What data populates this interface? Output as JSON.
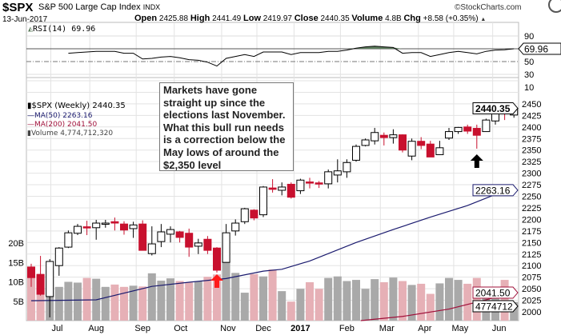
{
  "header": {
    "symbol": "$SPX",
    "name": "S&P 500 Large Cap Index",
    "exchange": "INDX",
    "copyright": "©StockCharts.com",
    "date": "13-Jun-2017",
    "open_label": "Open",
    "open": "2425.88",
    "high_label": "High",
    "high": "2441.49",
    "low_label": "Low",
    "low": "2419.97",
    "close_label": "Close",
    "close": "2440.35",
    "volume_label": "Volume",
    "volume": "4.8B",
    "chg_label": "Chg",
    "chg": "+8.58 (+0.35%)",
    "chg_arrow": "▲"
  },
  "rsi_panel": {
    "label": "RSI(14) 69.96",
    "current_tag": "69.96"
  },
  "legend": {
    "price": "$SPX (Weekly) 2440.35",
    "ma50": "MA(50) 2263.16",
    "ma200": "MA(200) 2041.50",
    "volume": "Volume 4,774,712,320"
  },
  "annotation": "Markets have gone straight up since the elections last November. What this bull run needs is a correction below the May lows of around the $2,350 level",
  "tags": {
    "price": "2440.35",
    "ma50": "2263.16",
    "ma200": "2041.50",
    "volume": "4774712"
  },
  "colors": {
    "up": "#ffffff",
    "down": "#c8102e",
    "vol_up": "#a9a9a9",
    "vol_down": "#e6b0b6",
    "ma50": "#1a1a6e",
    "ma200": "#a0103a",
    "rsi_fill": "#5f7f5f",
    "arrow_red": "#ff1a1a",
    "arrow_black": "#000000"
  },
  "chart_data": {
    "type": "candlestick",
    "title": "$SPX S&P 500 Large Cap Index INDX (Weekly)",
    "x_labels": [
      {
        "label": "Jul",
        "week": 2.8
      },
      {
        "label": "Aug",
        "week": 7
      },
      {
        "label": "Sep",
        "week": 12
      },
      {
        "label": "Oct",
        "week": 16.1
      },
      {
        "label": "Nov",
        "week": 21.2
      },
      {
        "label": "Dec",
        "week": 25
      },
      {
        "label": "2017",
        "week": 29,
        "bold": true
      },
      {
        "label": "Feb",
        "week": 34
      },
      {
        "label": "Mar",
        "week": 38.3
      },
      {
        "label": "Apr",
        "week": 42.4
      },
      {
        "label": "May",
        "week": 46.2
      },
      {
        "label": "Jun",
        "week": 50.4
      }
    ],
    "price_ticks": [
      2000,
      2025,
      2050,
      2075,
      2100,
      2125,
      2150,
      2175,
      2200,
      2225,
      2250,
      2275,
      2300,
      2325,
      2350,
      2375,
      2400,
      2425,
      2450
    ],
    "price_range": [
      2000,
      2450
    ],
    "rsi_ticks": [
      90,
      50,
      30,
      10
    ],
    "volume_ticks": [
      "5B",
      "10B",
      "15B",
      "20B"
    ],
    "ohlc": [
      [
        2097,
        2104,
        2054,
        2074
      ],
      [
        2081,
        2121,
        2035,
        2038
      ],
      [
        2033,
        2114,
        1988,
        2109
      ],
      [
        2100,
        2140,
        2078,
        2138
      ],
      [
        2140,
        2176,
        2138,
        2171
      ],
      [
        2170,
        2190,
        2166,
        2185
      ],
      [
        2184,
        2197,
        2166,
        2182
      ],
      [
        2182,
        2199,
        2156,
        2192
      ],
      [
        2190,
        2199,
        2182,
        2192
      ],
      [
        2195,
        2204,
        2176,
        2192
      ],
      [
        2190,
        2196,
        2167,
        2177
      ],
      [
        2180,
        2195,
        2160,
        2188
      ],
      [
        2190,
        2198,
        2133,
        2133
      ],
      [
        2126,
        2185,
        2122,
        2147
      ],
      [
        2152,
        2190,
        2140,
        2173
      ],
      [
        2168,
        2185,
        2150,
        2178
      ],
      [
        2173,
        2175,
        2150,
        2161
      ],
      [
        2170,
        2180,
        2119,
        2140
      ],
      [
        2142,
        2158,
        2125,
        2149
      ],
      [
        2157,
        2164,
        2125,
        2133
      ],
      [
        2138,
        2140,
        2085,
        2090
      ],
      [
        2107,
        2190,
        2107,
        2171
      ],
      [
        2175,
        2200,
        2165,
        2192
      ],
      [
        2195,
        2225,
        2190,
        2223
      ],
      [
        2220,
        2222,
        2198,
        2203
      ],
      [
        2210,
        2272,
        2205,
        2270
      ],
      [
        2268,
        2287,
        2258,
        2265
      ],
      [
        2263,
        2280,
        2252,
        2270
      ],
      [
        2276,
        2280,
        2245,
        2248
      ],
      [
        2262,
        2288,
        2255,
        2285
      ],
      [
        2281,
        2290,
        2267,
        2280
      ],
      [
        2279,
        2283,
        2268,
        2278
      ],
      [
        2277,
        2308,
        2267,
        2303
      ],
      [
        2296,
        2330,
        2280,
        2305
      ],
      [
        2303,
        2330,
        2290,
        2323
      ],
      [
        2328,
        2362,
        2325,
        2358
      ],
      [
        2360,
        2375,
        2358,
        2372
      ],
      [
        2370,
        2398,
        2362,
        2388
      ],
      [
        2382,
        2388,
        2360,
        2377
      ],
      [
        2377,
        2395,
        2364,
        2383
      ],
      [
        2383,
        2384,
        2345,
        2350
      ],
      [
        2337,
        2375,
        2328,
        2369
      ],
      [
        2369,
        2378,
        2352,
        2360
      ],
      [
        2363,
        2370,
        2335,
        2335
      ],
      [
        2340,
        2370,
        2340,
        2355
      ],
      [
        2376,
        2398,
        2372,
        2390
      ],
      [
        2390,
        2400,
        2385,
        2399
      ],
      [
        2400,
        2405,
        2385,
        2391
      ],
      [
        2397,
        2405,
        2353,
        2382
      ],
      [
        2390,
        2418,
        2390,
        2415
      ],
      [
        2413,
        2440,
        2405,
        2438
      ],
      [
        2432,
        2450,
        2415,
        2430
      ],
      [
        2425.88,
        2441.49,
        2419.97,
        2440.35
      ]
    ],
    "candle_color": [
      "d",
      "d",
      "u",
      "u",
      "u",
      "u",
      "d",
      "u",
      "u",
      "d",
      "d",
      "u",
      "d",
      "u",
      "u",
      "u",
      "d",
      "d",
      "u",
      "d",
      "d",
      "u",
      "u",
      "u",
      "d",
      "u",
      "d",
      "u",
      "d",
      "u",
      "d",
      "d",
      "u",
      "u",
      "u",
      "u",
      "u",
      "u",
      "d",
      "u",
      "d",
      "u",
      "d",
      "d",
      "u",
      "u",
      "u",
      "d",
      "d",
      "u",
      "u",
      "d",
      "u"
    ],
    "volume_b": [
      13,
      12,
      13,
      8.7,
      10,
      9.8,
      11,
      10.8,
      8.7,
      9.3,
      8.7,
      9,
      8.8,
      12.2,
      10.3,
      10.9,
      10.2,
      9.8,
      10.1,
      11.3,
      11.9,
      15.4,
      12.3,
      7.2,
      12,
      11.4,
      13.2,
      7.6,
      4.9,
      8.2,
      9.9,
      8.2,
      11,
      11.4,
      10.2,
      10.5,
      8.2,
      10.7,
      9.9,
      11.1,
      10.2,
      9.2,
      9.5,
      6.9,
      9.6,
      11,
      10.5,
      9.5,
      11,
      8.4,
      8.5,
      10.5,
      4.8
    ],
    "ma50": [
      [
        0,
        2024
      ],
      [
        7,
        2026
      ],
      [
        13,
        2055
      ],
      [
        17,
        2064
      ],
      [
        21,
        2072
      ],
      [
        25,
        2088
      ],
      [
        27,
        2092
      ],
      [
        30,
        2110
      ],
      [
        35,
        2150
      ],
      [
        39,
        2178
      ],
      [
        43,
        2205
      ],
      [
        47,
        2230
      ],
      [
        50,
        2254
      ],
      [
        52,
        2263.16
      ]
    ],
    "ma200": [
      [
        35.5,
        1977
      ],
      [
        40,
        1990
      ],
      [
        45,
        2006
      ],
      [
        49,
        2026
      ],
      [
        52,
        2041.5
      ]
    ],
    "rsi": [
      [
        4,
        63
      ],
      [
        5,
        64
      ],
      [
        6,
        65
      ],
      [
        7,
        66
      ],
      [
        8,
        66
      ],
      [
        9,
        66
      ],
      [
        10,
        63
      ],
      [
        11,
        63
      ],
      [
        12,
        54
      ],
      [
        13,
        55
      ],
      [
        14,
        57
      ],
      [
        15,
        58
      ],
      [
        16,
        56
      ],
      [
        17,
        53
      ],
      [
        18,
        52
      ],
      [
        19,
        49
      ],
      [
        20,
        43
      ],
      [
        21,
        55
      ],
      [
        22,
        58
      ],
      [
        23,
        61
      ],
      [
        24,
        58
      ],
      [
        25,
        65
      ],
      [
        26,
        65
      ],
      [
        27,
        65
      ],
      [
        28,
        61
      ],
      [
        29,
        64
      ],
      [
        30,
        64
      ],
      [
        31,
        64
      ],
      [
        32,
        66
      ],
      [
        33,
        66
      ],
      [
        34,
        68
      ],
      [
        35,
        71
      ],
      [
        36,
        73
      ],
      [
        37,
        74
      ],
      [
        38,
        73
      ],
      [
        39,
        72
      ],
      [
        40,
        63
      ],
      [
        41,
        64
      ],
      [
        42,
        64
      ],
      [
        43,
        58
      ],
      [
        44,
        61
      ],
      [
        45,
        64
      ],
      [
        46,
        66
      ],
      [
        47,
        64
      ],
      [
        48,
        62
      ],
      [
        49,
        66
      ],
      [
        50,
        68
      ],
      [
        51,
        68.5
      ],
      [
        52,
        69.96
      ]
    ],
    "markers": [
      {
        "type": "up-arrow",
        "color": "red",
        "week": 20
      },
      {
        "type": "up-arrow",
        "color": "black",
        "week": 48
      }
    ]
  }
}
